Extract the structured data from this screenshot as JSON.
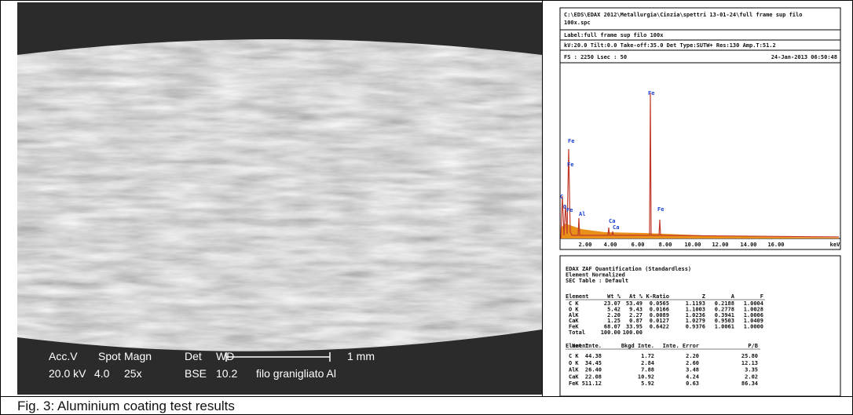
{
  "sem": {
    "labels": [
      "Acc.V",
      "Spot",
      "Magn",
      "Det",
      "WD"
    ],
    "values": [
      "20.0 kV",
      "4.0",
      "25x",
      "BSE",
      "10.2"
    ],
    "sample": "filo granigliato Al",
    "scale": "1 mm"
  },
  "eds": {
    "path": [
      "C:\\EDS\\EDAX 2012\\Metallurgia\\Cinzia\\spettri 13-01-24\\full frame sup filo",
      "100x.spc"
    ],
    "label": "Label:full frame sup filo 100x",
    "params": "kV:20.0 Tilt:0.0 Take-off:35.0  Det Type:SUTW+ Res:130 Amp.T:51.2",
    "fs": "FS : 2250  Lsec : 50",
    "date": "24-Jan-2013 06:50:48",
    "peaks": [
      "Fe",
      "Fe",
      "Fe",
      "C",
      "O",
      "Al",
      "Ca",
      "Ca",
      "Fe",
      "Fe"
    ],
    "xlabels": [
      "2.00",
      "4.00",
      "6.00",
      "8.00",
      "10.00",
      "12.00",
      "14.00",
      "16.00",
      "keV"
    ]
  },
  "quant": {
    "title": [
      "EDAX ZAF Quantification (Standardless)",
      "Element Normalized",
      "SEC Table : Default"
    ],
    "header1": [
      "Element",
      "Wt %",
      "At %",
      "K-Ratio",
      "Z",
      "A",
      "F"
    ],
    "rows1": [
      [
        "C K",
        "23.07",
        "53.49",
        "0.0565",
        "1.1193",
        "0.2188",
        "1.0004"
      ],
      [
        "O K",
        "5.42",
        "9.43",
        "0.0166",
        "1.1003",
        "0.2778",
        "1.0028"
      ],
      [
        "AlK",
        "2.20",
        "2.27",
        "0.0089",
        "1.0236",
        "0.3941",
        "1.0006"
      ],
      [
        "CaK",
        "1.25",
        "0.87",
        "0.0127",
        "1.0279",
        "0.9503",
        "1.0409"
      ],
      [
        "FeK",
        "68.07",
        "33.95",
        "0.6422",
        "0.9376",
        "1.0061",
        "1.0000"
      ],
      [
        "Total",
        "100.00",
        "100.00"
      ]
    ],
    "header2": [
      "Element",
      "Net Inte.",
      "Bkgd Inte.",
      "Inte. Error",
      "P/B"
    ],
    "rows2": [
      [
        "C K",
        "44.38",
        "1.72",
        "2.20",
        "25.80"
      ],
      [
        "O K",
        "34.45",
        "2.84",
        "2.60",
        "12.13"
      ],
      [
        "AlK",
        "26.40",
        "7.88",
        "3.48",
        "3.35"
      ],
      [
        "CaK",
        "22.08",
        "10.92",
        "4.24",
        "2.02"
      ],
      [
        "FeK",
        "511.12",
        "5.92",
        "0.63",
        "86.34"
      ]
    ]
  },
  "caption": "Fig. 3: Aluminium coating test results"
}
